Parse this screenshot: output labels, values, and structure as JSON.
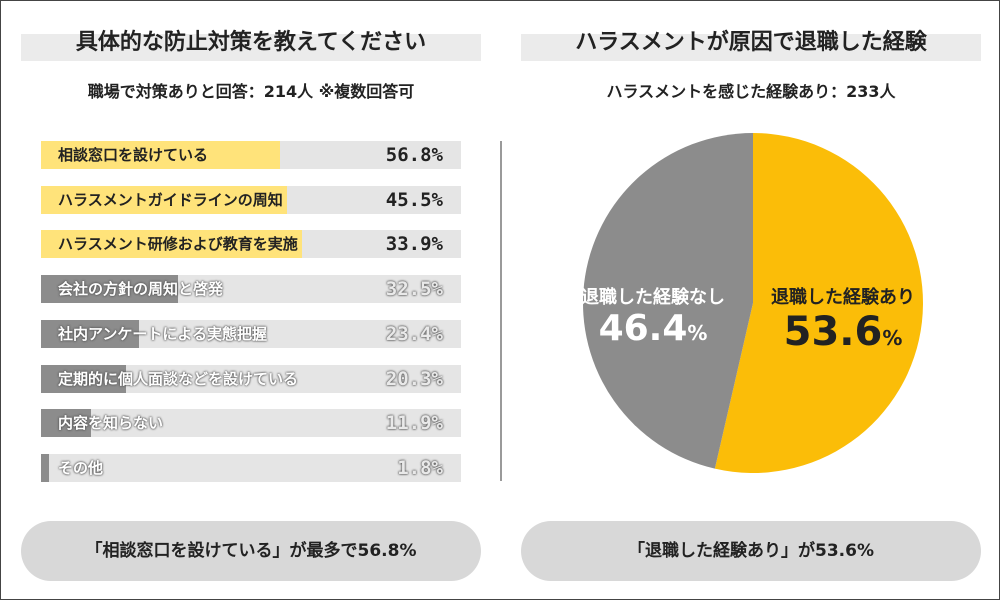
{
  "left_panel": {
    "title": "具体的な防止対策を教えてください",
    "subtitle": "職場で対策ありと回答：214人 ※複数回答可",
    "summary": "「相談窓口を設けている」が最多で56.8%"
  },
  "right_panel": {
    "title": "ハラスメントが原因で退職した経験",
    "subtitle": "ハラスメントを感じた経験あり：233人",
    "summary": "「退職した経験あり」が53.6%"
  },
  "colors": {
    "highlight_bar": "#ffe37a",
    "muted_bar": "#8c8c8c",
    "pie_yes": "#fbbd08",
    "pie_no": "#8c8c8c"
  },
  "chart_data": [
    {
      "type": "bar",
      "orientation": "horizontal",
      "categories": [
        "相談窓口を設けている",
        "ハラスメントガイドラインの周知",
        "ハラスメント研修および教育を実施",
        "会社の方針の周知と啓発",
        "社内アンケートによる実態把握",
        "定期的に個人面談などを設けている",
        "内容を知らない",
        "その他"
      ],
      "values": [
        56.8,
        45.5,
        33.9,
        32.5,
        23.4,
        20.3,
        11.9,
        1.8
      ],
      "value_labels": [
        "56.8%",
        "45.5%",
        "33.9%",
        "32.5%",
        "23.4%",
        "20.3%",
        "11.9%",
        "1.8%"
      ],
      "highlighted_count": 3,
      "xlim": [
        0,
        100
      ]
    },
    {
      "type": "pie",
      "slices": [
        {
          "label": "退職した経験あり",
          "value": 53.6,
          "number": "53.6",
          "unit": "%"
        },
        {
          "label": "退職した経験なし",
          "value": 46.4,
          "number": "46.4",
          "unit": "%"
        }
      ]
    }
  ]
}
